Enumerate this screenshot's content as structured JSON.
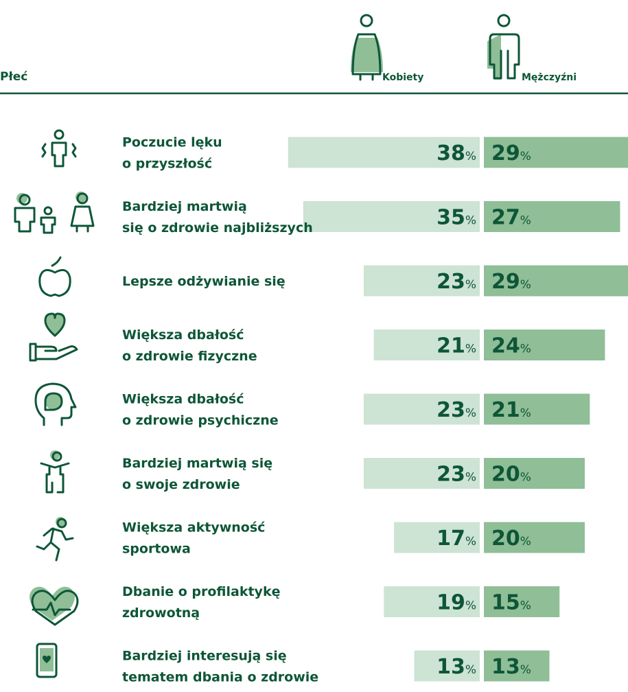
{
  "chart_data": {
    "type": "butterfly",
    "title": "Płeć",
    "categories": [
      "Poczucie lęku\no przyszłość",
      "Bardziej martwią\nsię o zdrowie najbliższych",
      "Lepsze odżywianie się",
      "Większa dbałość\no zdrowie fizyczne",
      "Większa dbałość\no zdrowie psychiczne",
      "Bardziej martwią się\no swoje zdrowie",
      "Większa aktywność\nsportowa",
      "Dbanie o profilaktykę\nzdrowotną",
      "Bardziej interesują się\ntematem dbania o zdrowie"
    ],
    "series": [
      {
        "name": "Kobiety",
        "color": "#cde3d3",
        "values": [
          38,
          35,
          23,
          21,
          23,
          23,
          17,
          19,
          13
        ],
        "value_labels": [
          "38%",
          "35%",
          "23%",
          "21%",
          "23%",
          "23%",
          "17%",
          "19%",
          "13%"
        ]
      },
      {
        "name": "Mężczyźni",
        "color": "#8fbe97",
        "values": [
          29,
          27,
          29,
          24,
          21,
          20,
          20,
          15,
          13
        ],
        "value_labels": [
          "29%",
          "27%",
          "29%",
          "24%",
          "21%",
          "20%",
          "20%",
          "15%",
          "13%"
        ]
      }
    ]
  }
}
